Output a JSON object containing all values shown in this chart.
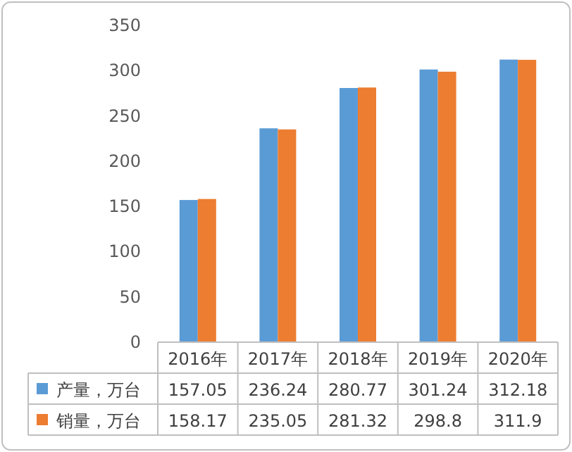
{
  "chart_data": {
    "type": "bar",
    "categories": [
      "2016年",
      "2017年",
      "2018年",
      "2019年",
      "2020年"
    ],
    "series": [
      {
        "name": "产量，万台",
        "color": "#5b9bd5",
        "values": [
          157.05,
          236.24,
          280.77,
          301.24,
          312.18
        ]
      },
      {
        "name": "销量，万台",
        "color": "#ed7d31",
        "values": [
          158.17,
          235.05,
          281.32,
          298.8,
          311.9
        ]
      }
    ],
    "ylim": [
      0,
      350
    ],
    "yticks": [
      0,
      50,
      100,
      150,
      200,
      250,
      300,
      350
    ],
    "grid": false,
    "legend": "bottom",
    "data_labels": true
  }
}
